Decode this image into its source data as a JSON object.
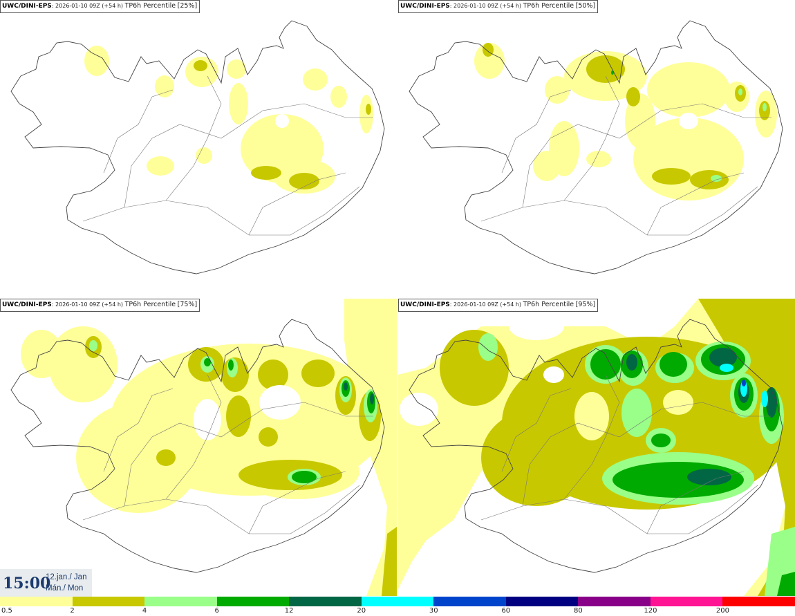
{
  "panels": [
    {
      "model": "UWC/DINI-EPS",
      "run": "2026-01-10 09Z",
      "lead": "(+54 h)",
      "field": "TP6h Percentile",
      "pct": "[25%]"
    },
    {
      "model": "UWC/DINI-EPS",
      "run": "2026-01-10 09Z",
      "lead": "(+54 h)",
      "field": "TP6h Percentile",
      "pct": "[50%]"
    },
    {
      "model": "UWC/DINI-EPS",
      "run": "2026-01-10 09Z",
      "lead": "(+54 h)",
      "field": "TP6h Percentile",
      "pct": "[75%]"
    },
    {
      "model": "UWC/DINI-EPS",
      "run": "2026-01-10 09Z",
      "lead": "(+54 h)",
      "field": "TP6h Percentile",
      "pct": "[95%]"
    }
  ],
  "valid": {
    "time": "15:00",
    "date_line1": "12.jan./ Jan",
    "date_line2": "Mán./ Mon"
  },
  "legend": {
    "colors": [
      "#ffff99",
      "#c8c800",
      "#99ff88",
      "#00aa00",
      "#006644",
      "#00ffff",
      "#0044cc",
      "#000080",
      "#880088",
      "#ff1493",
      "#ff0000"
    ],
    "labels": [
      "0.5",
      "2",
      "4",
      "6",
      "12",
      "20",
      "30",
      "60",
      "80",
      "120",
      "200"
    ]
  }
}
